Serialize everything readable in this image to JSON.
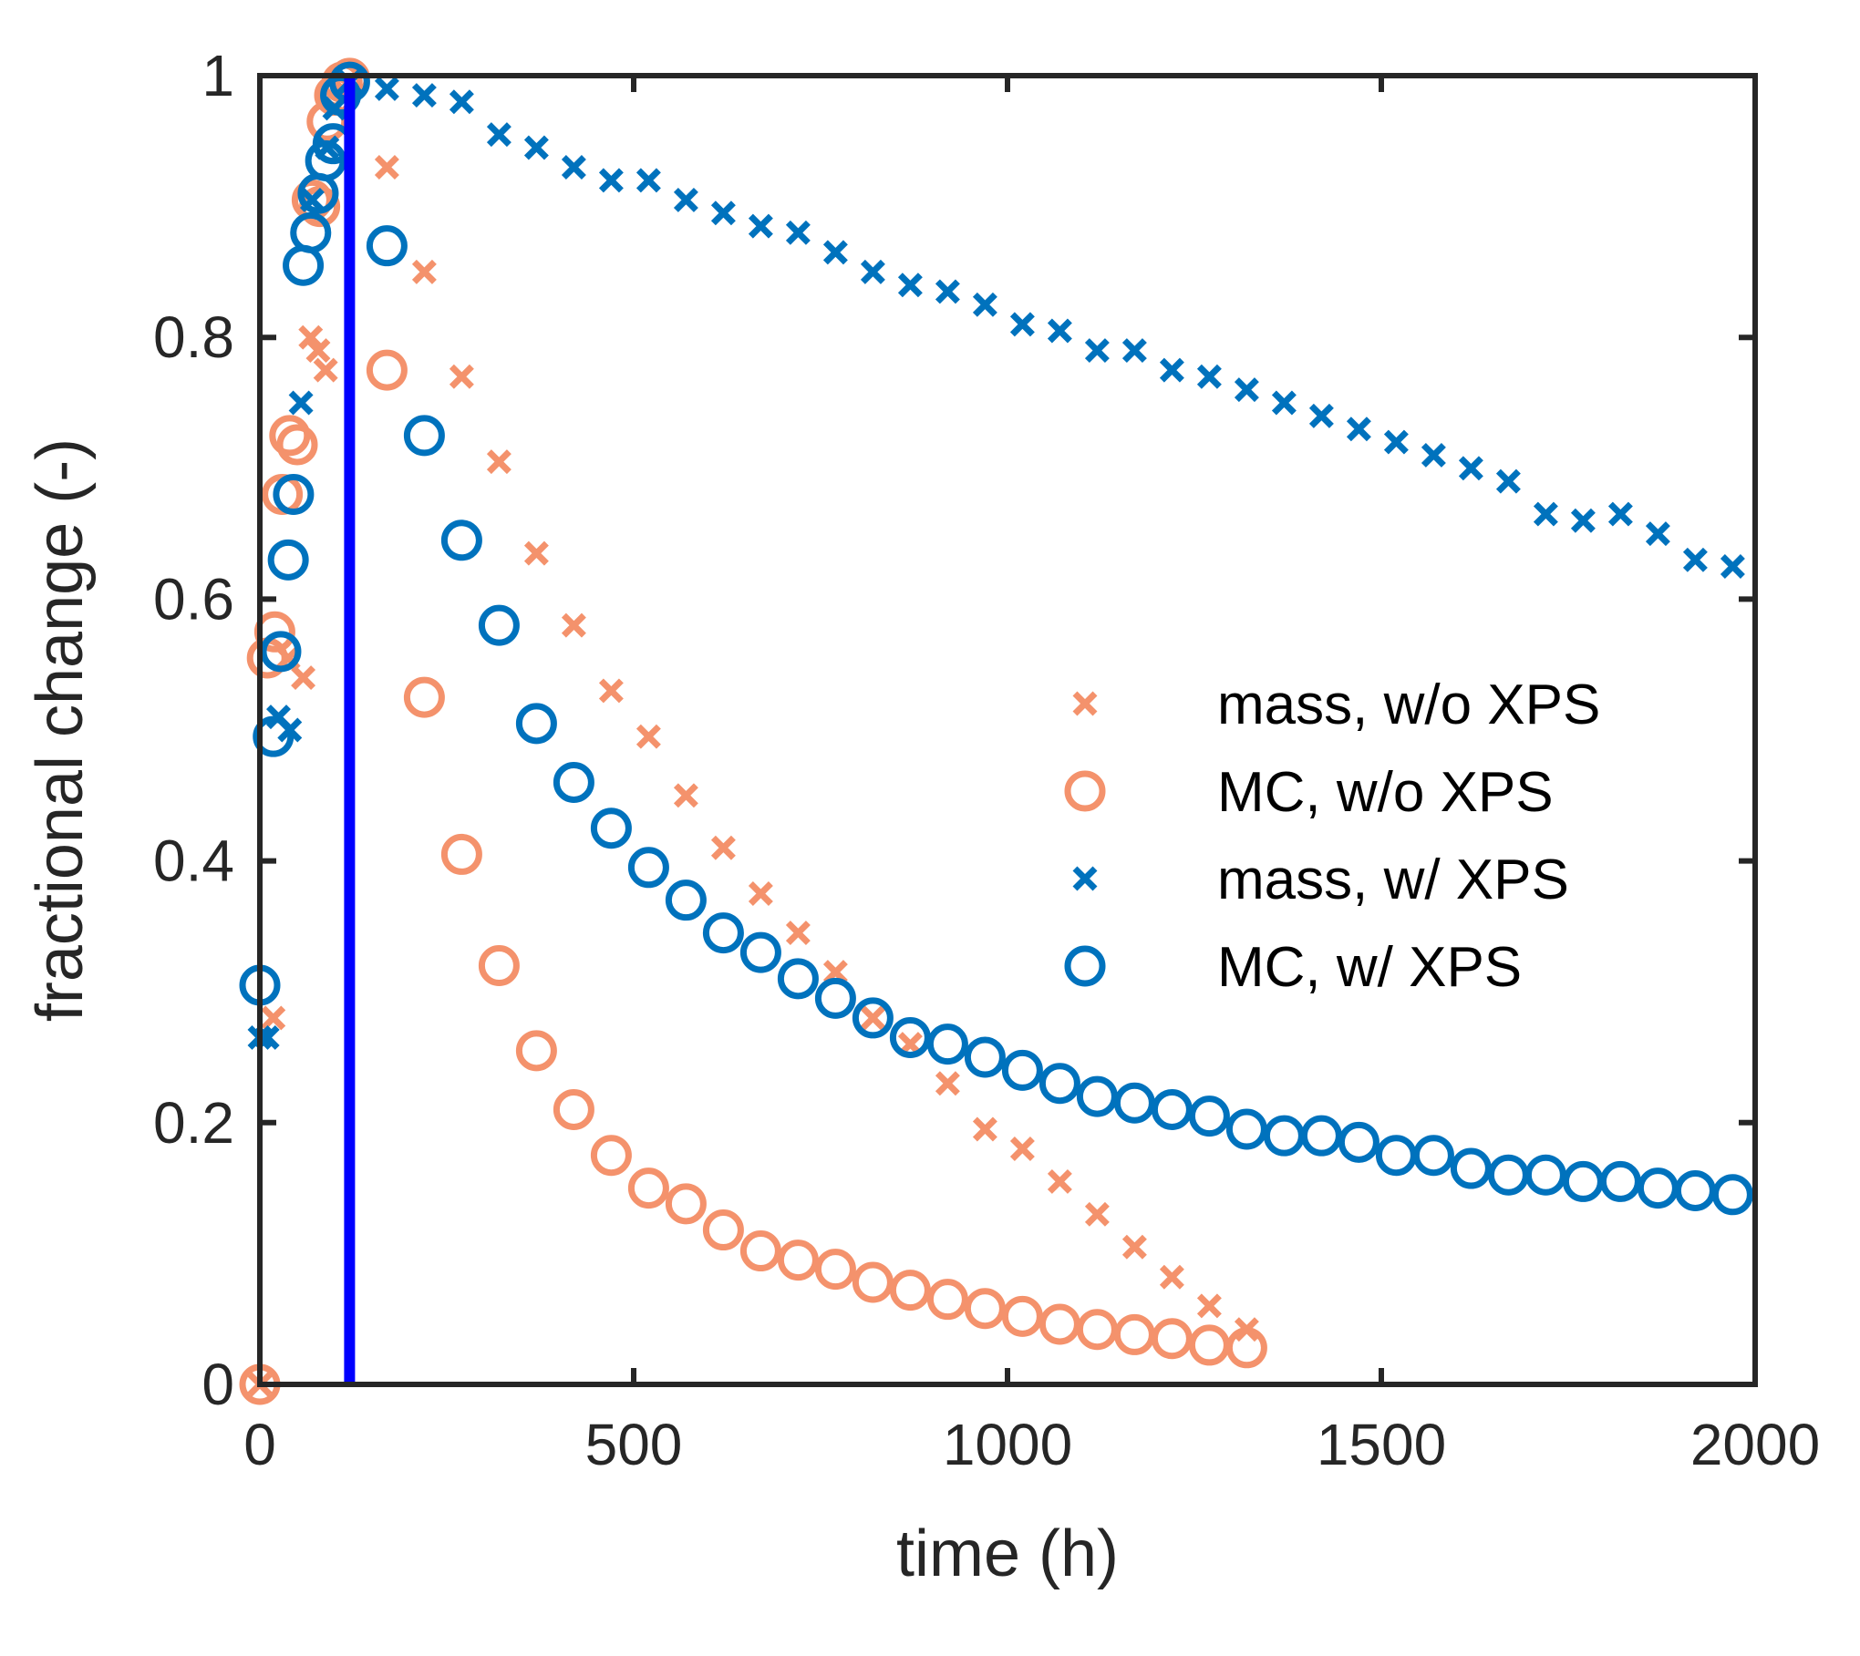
{
  "chart_data": {
    "type": "scatter",
    "title": "",
    "xlabel": "time (h)",
    "ylabel": "fractional change (-)",
    "xlim": [
      0,
      2000
    ],
    "ylim": [
      0,
      1
    ],
    "xticks": [
      0,
      500,
      1000,
      1500,
      2000
    ],
    "yticks": [
      0,
      0.2,
      0.4,
      0.6,
      0.8,
      1
    ],
    "xtick_labels": [
      "0",
      "500",
      "1000",
      "1500",
      "2000"
    ],
    "ytick_labels": [
      "0",
      "0.2",
      "0.4",
      "0.6",
      "0.8",
      "1"
    ],
    "grid": false,
    "legend_position": "center-right",
    "vertical_line": {
      "x": 120,
      "color": "#0000ff"
    },
    "series": [
      {
        "name": "mass, w/o XPS",
        "marker": "x",
        "color": "#f4926c",
        "points": [
          [
            0,
            0
          ],
          [
            18,
            0.28
          ],
          [
            38,
            0.555
          ],
          [
            58,
            0.54
          ],
          [
            68,
            0.8
          ],
          [
            78,
            0.79
          ],
          [
            88,
            0.775
          ],
          [
            110,
            0.99
          ],
          [
            170,
            0.93
          ],
          [
            220,
            0.85
          ],
          [
            270,
            0.77
          ],
          [
            320,
            0.705
          ],
          [
            370,
            0.635
          ],
          [
            420,
            0.58
          ],
          [
            470,
            0.53
          ],
          [
            520,
            0.495
          ],
          [
            570,
            0.45
          ],
          [
            620,
            0.41
          ],
          [
            670,
            0.375
          ],
          [
            720,
            0.345
          ],
          [
            770,
            0.315
          ],
          [
            820,
            0.28
          ],
          [
            870,
            0.26
          ],
          [
            920,
            0.23
          ],
          [
            970,
            0.195
          ],
          [
            1020,
            0.18
          ],
          [
            1070,
            0.155
          ],
          [
            1120,
            0.13
          ],
          [
            1170,
            0.105
          ],
          [
            1220,
            0.082
          ],
          [
            1270,
            0.06
          ],
          [
            1320,
            0.042
          ]
        ]
      },
      {
        "name": "MC, w/o XPS",
        "marker": "o",
        "color": "#f4926c",
        "points": [
          [
            0,
            0
          ],
          [
            10,
            0.555
          ],
          [
            20,
            0.575
          ],
          [
            30,
            0.68
          ],
          [
            40,
            0.725
          ],
          [
            50,
            0.718
          ],
          [
            70,
            0.905
          ],
          [
            80,
            0.9
          ],
          [
            90,
            0.965
          ],
          [
            100,
            0.985
          ],
          [
            110,
            0.995
          ],
          [
            120,
            0.998
          ],
          [
            170,
            0.775
          ],
          [
            220,
            0.525
          ],
          [
            270,
            0.405
          ],
          [
            320,
            0.32
          ],
          [
            370,
            0.255
          ],
          [
            420,
            0.21
          ],
          [
            470,
            0.175
          ],
          [
            520,
            0.15
          ],
          [
            570,
            0.138
          ],
          [
            620,
            0.118
          ],
          [
            670,
            0.102
          ],
          [
            720,
            0.095
          ],
          [
            770,
            0.088
          ],
          [
            820,
            0.078
          ],
          [
            870,
            0.072
          ],
          [
            920,
            0.065
          ],
          [
            970,
            0.058
          ],
          [
            1020,
            0.052
          ],
          [
            1070,
            0.046
          ],
          [
            1120,
            0.042
          ],
          [
            1170,
            0.038
          ],
          [
            1220,
            0.035
          ],
          [
            1270,
            0.03
          ],
          [
            1320,
            0.028
          ]
        ]
      },
      {
        "name": "mass, w/ XPS",
        "marker": "x",
        "color": "#0072bd",
        "points": [
          [
            0,
            0.265
          ],
          [
            10,
            0.265
          ],
          [
            25,
            0.51
          ],
          [
            40,
            0.5
          ],
          [
            55,
            0.75
          ],
          [
            70,
            0.905
          ],
          [
            90,
            0.945
          ],
          [
            100,
            0.975
          ],
          [
            120,
            0.995
          ],
          [
            170,
            0.99
          ],
          [
            220,
            0.985
          ],
          [
            270,
            0.98
          ],
          [
            320,
            0.955
          ],
          [
            370,
            0.945
          ],
          [
            420,
            0.93
          ],
          [
            470,
            0.92
          ],
          [
            520,
            0.92
          ],
          [
            570,
            0.905
          ],
          [
            620,
            0.895
          ],
          [
            670,
            0.885
          ],
          [
            720,
            0.88
          ],
          [
            770,
            0.865
          ],
          [
            820,
            0.85
          ],
          [
            870,
            0.84
          ],
          [
            920,
            0.835
          ],
          [
            970,
            0.825
          ],
          [
            1020,
            0.81
          ],
          [
            1070,
            0.805
          ],
          [
            1120,
            0.79
          ],
          [
            1170,
            0.79
          ],
          [
            1220,
            0.775
          ],
          [
            1270,
            0.77
          ],
          [
            1320,
            0.76
          ],
          [
            1370,
            0.75
          ],
          [
            1420,
            0.74
          ],
          [
            1470,
            0.73
          ],
          [
            1520,
            0.72
          ],
          [
            1570,
            0.71
          ],
          [
            1620,
            0.7
          ],
          [
            1670,
            0.69
          ],
          [
            1720,
            0.665
          ],
          [
            1770,
            0.66
          ],
          [
            1820,
            0.665
          ],
          [
            1870,
            0.65
          ],
          [
            1920,
            0.63
          ],
          [
            1970,
            0.625
          ]
        ]
      },
      {
        "name": "MC, w/ XPS",
        "marker": "o",
        "color": "#0072bd",
        "points": [
          [
            0,
            0.305
          ],
          [
            18,
            0.495
          ],
          [
            28,
            0.56
          ],
          [
            38,
            0.63
          ],
          [
            45,
            0.68
          ],
          [
            58,
            0.855
          ],
          [
            68,
            0.88
          ],
          [
            78,
            0.91
          ],
          [
            88,
            0.935
          ],
          [
            98,
            0.948
          ],
          [
            108,
            0.985
          ],
          [
            120,
            0.995
          ],
          [
            170,
            0.87
          ],
          [
            220,
            0.725
          ],
          [
            270,
            0.645
          ],
          [
            320,
            0.58
          ],
          [
            370,
            0.505
          ],
          [
            420,
            0.46
          ],
          [
            470,
            0.425
          ],
          [
            520,
            0.395
          ],
          [
            570,
            0.37
          ],
          [
            620,
            0.345
          ],
          [
            670,
            0.33
          ],
          [
            720,
            0.31
          ],
          [
            770,
            0.295
          ],
          [
            820,
            0.28
          ],
          [
            870,
            0.265
          ],
          [
            920,
            0.26
          ],
          [
            970,
            0.25
          ],
          [
            1020,
            0.24
          ],
          [
            1070,
            0.23
          ],
          [
            1120,
            0.22
          ],
          [
            1170,
            0.215
          ],
          [
            1220,
            0.21
          ],
          [
            1270,
            0.205
          ],
          [
            1320,
            0.195
          ],
          [
            1370,
            0.19
          ],
          [
            1420,
            0.19
          ],
          [
            1470,
            0.185
          ],
          [
            1520,
            0.175
          ],
          [
            1570,
            0.175
          ],
          [
            1620,
            0.165
          ],
          [
            1670,
            0.16
          ],
          [
            1720,
            0.16
          ],
          [
            1770,
            0.155
          ],
          [
            1820,
            0.155
          ],
          [
            1870,
            0.15
          ],
          [
            1920,
            0.148
          ],
          [
            1970,
            0.145
          ]
        ]
      }
    ]
  }
}
